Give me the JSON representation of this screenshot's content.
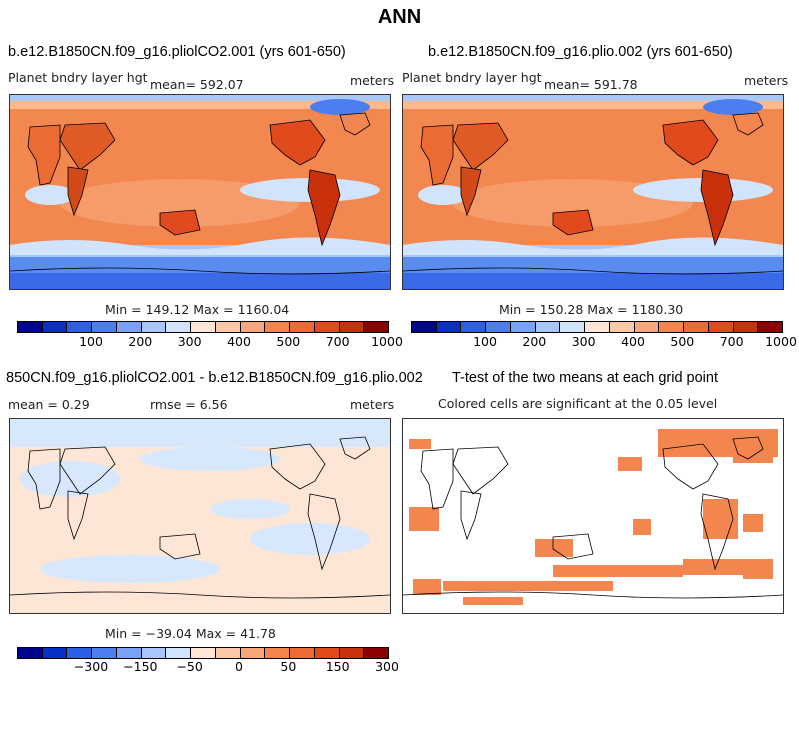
{
  "title": "ANN",
  "panels": [
    {
      "title": "b.e12.B1850CN.f09_g16.pliolCO2.001 (yrs 601-650)",
      "variable": "Planet bndry layer hgt",
      "mean": "mean= 592.07",
      "units": "meters",
      "minmax": "Min = 149.12 Max = 1160.04"
    },
    {
      "title": "b.e12.B1850CN.f09_g16.plio.002 (yrs 601-650)",
      "variable": "Planet bndry layer hgt",
      "mean": "mean= 591.78",
      "units": "meters",
      "minmax": "Min = 150.28 Max = 1180.30"
    },
    {
      "title": "850CN.f09_g16.pliolCO2.001 - b.e12.B1850CN.f09_g16.plio.002",
      "mean": "mean =   0.29",
      "rmse": "rmse =   6.56",
      "units": "meters",
      "minmax": "Min = −39.04 Max =  41.78"
    },
    {
      "title": "T-test of the two means at each grid point",
      "subtitle": "Colored cells are significant at the 0.05 level"
    }
  ],
  "colorbar_abs": {
    "colors": [
      "#00058e",
      "#0a2fc4",
      "#2c5fe6",
      "#4b7ff0",
      "#78a2f5",
      "#a8c6fa",
      "#d2e3fc",
      "#fde6d6",
      "#fcc9a6",
      "#f8a77a",
      "#f3854f",
      "#ec6a33",
      "#e04a1c",
      "#c9310d",
      "#8c0000"
    ],
    "ticks": [
      "100",
      "200",
      "300",
      "400",
      "500",
      "700",
      "1000"
    ]
  },
  "colorbar_diff": {
    "colors": [
      "#00058e",
      "#0a2fc4",
      "#2c5fe6",
      "#4b7ff0",
      "#78a2f5",
      "#a8c6fa",
      "#d2e3fc",
      "#fde6d6",
      "#fcc9a6",
      "#f8a77a",
      "#f3854f",
      "#ec6a33",
      "#e04a1c",
      "#c9310d",
      "#8c0000"
    ],
    "ticks": [
      "−300",
      "−150",
      "−50",
      "0",
      "50",
      "150",
      "300"
    ]
  }
}
